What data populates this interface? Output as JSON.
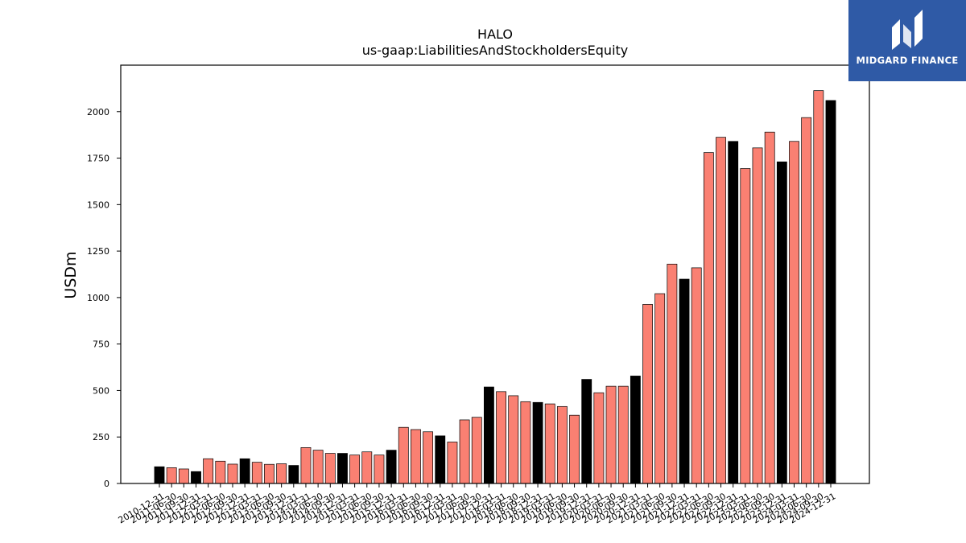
{
  "chart_data": {
    "type": "bar",
    "title": "HALO",
    "subtitle": "us-gaap:LiabilitiesAndStockholdersEquity",
    "xlabel": "",
    "ylabel": "USDm",
    "ylim": [
      0,
      2250
    ],
    "yticks": [
      0,
      250,
      500,
      750,
      1000,
      1250,
      1500,
      1750,
      2000
    ],
    "grid": false,
    "colors": {
      "annual": "#000000",
      "quarterly": "#fa8072",
      "edge": "#000000"
    },
    "categories": [
      "2010-12-31",
      "2011-06-30",
      "2011-09-30",
      "2011-12-31",
      "2012-03-31",
      "2012-06-30",
      "2012-09-30",
      "2012-12-31",
      "2013-03-31",
      "2013-06-30",
      "2013-09-30",
      "2013-12-31",
      "2014-03-31",
      "2014-06-30",
      "2014-09-30",
      "2014-12-31",
      "2015-03-31",
      "2015-06-30",
      "2015-09-30",
      "2015-12-31",
      "2016-03-31",
      "2016-06-30",
      "2016-09-30",
      "2016-12-31",
      "2017-03-31",
      "2017-06-30",
      "2017-09-30",
      "2017-12-31",
      "2018-03-31",
      "2018-06-30",
      "2018-09-30",
      "2018-12-31",
      "2019-03-31",
      "2019-06-30",
      "2019-09-30",
      "2019-12-31",
      "2020-03-31",
      "2020-06-30",
      "2020-09-30",
      "2020-12-31",
      "2021-03-31",
      "2021-06-30",
      "2021-09-30",
      "2021-12-31",
      "2022-03-31",
      "2022-06-30",
      "2022-09-30",
      "2022-12-31",
      "2023-03-31",
      "2023-06-30",
      "2023-09-30",
      "2023-12-31",
      "2024-03-31",
      "2024-06-30",
      "2024-09-30",
      "2024-12-31"
    ],
    "values": [
      90,
      85,
      78,
      64,
      133,
      120,
      104,
      133,
      114,
      103,
      106,
      97,
      193,
      179,
      162,
      162,
      153,
      170,
      153,
      179,
      302,
      290,
      278,
      256,
      223,
      342,
      356,
      519,
      494,
      472,
      440,
      436,
      428,
      414,
      367,
      560,
      488,
      523,
      523,
      578,
      963,
      1021,
      1180,
      1099,
      1160,
      1780,
      1862,
      1840,
      1694,
      1805,
      1890,
      1730,
      1840,
      1968,
      2113,
      2060
    ],
    "annual_flags": [
      1,
      0,
      0,
      1,
      0,
      0,
      0,
      1,
      0,
      0,
      0,
      1,
      0,
      0,
      0,
      1,
      0,
      0,
      0,
      1,
      0,
      0,
      0,
      1,
      0,
      0,
      0,
      1,
      0,
      0,
      0,
      1,
      0,
      0,
      0,
      1,
      0,
      0,
      0,
      1,
      0,
      0,
      0,
      1,
      0,
      0,
      0,
      1,
      0,
      0,
      0,
      1,
      0,
      0,
      0,
      1
    ]
  },
  "logo": {
    "text": "MIDGARD FINANCE",
    "icon": "midgard-finance-logo-icon",
    "color": "#2f5aa6"
  }
}
